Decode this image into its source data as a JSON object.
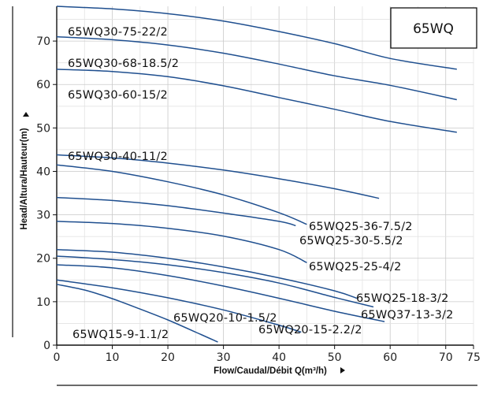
{
  "chart_data": {
    "type": "line",
    "title": "65WQ",
    "xlabel": "Flow/Caudal/Débit Q(m³/h)",
    "ylabel": "Head/Altura/Hauteur(m)",
    "xlim": [
      0,
      75
    ],
    "ylim": [
      0,
      78
    ],
    "x_ticks": [
      0,
      10,
      20,
      30,
      40,
      50,
      60,
      70,
      75
    ],
    "y_ticks": [
      0,
      10,
      20,
      30,
      40,
      50,
      60,
      70
    ],
    "grid": true,
    "series": [
      {
        "name": "65WQ30-75-22/2",
        "x": [
          0,
          10,
          20,
          30,
          40,
          50,
          60,
          72
        ],
        "y": [
          78,
          77.4,
          76.3,
          74.6,
          72.2,
          69.4,
          66.0,
          63.5
        ]
      },
      {
        "name": "65WQ30-68-18.5/2",
        "x": [
          0,
          10,
          20,
          30,
          40,
          50,
          60,
          72
        ],
        "y": [
          71,
          70.3,
          69.1,
          67.2,
          64.7,
          62.0,
          59.8,
          56.5
        ]
      },
      {
        "name": "65WQ30-60-15/2",
        "x": [
          0,
          10,
          20,
          30,
          40,
          50,
          60,
          72
        ],
        "y": [
          63.5,
          63.0,
          61.8,
          59.7,
          57.0,
          54.3,
          51.5,
          49.0
        ]
      },
      {
        "name": "65WQ30-40-11/2",
        "x": [
          0,
          10,
          20,
          30,
          40,
          50,
          58
        ],
        "y": [
          43.8,
          43.1,
          41.9,
          40.3,
          38.3,
          36.0,
          33.8
        ]
      },
      {
        "name": "65WQ25-36-7.5/2",
        "x": [
          0,
          10,
          20,
          30,
          40,
          45
        ],
        "y": [
          41.5,
          40.0,
          37.6,
          34.6,
          30.5,
          27.8
        ]
      },
      {
        "name": "65WQ25-30-5.5/2",
        "x": [
          0,
          10,
          20,
          30,
          40,
          43
        ],
        "y": [
          34,
          33.3,
          32.1,
          30.4,
          28.5,
          27.5
        ]
      },
      {
        "name": "65WQ25-25-4/2",
        "x": [
          0,
          10,
          20,
          30,
          40,
          45
        ],
        "y": [
          28.5,
          28.0,
          26.9,
          25.1,
          22.0,
          19.0
        ]
      },
      {
        "name": "65WQ25-18-3/2",
        "x": [
          0,
          10,
          20,
          30,
          40,
          50,
          54
        ],
        "y": [
          22,
          21.4,
          20.0,
          18.0,
          15.5,
          12.5,
          10.8
        ]
      },
      {
        "name": "65WQ37-13-3/2",
        "x": [
          0,
          10,
          20,
          30,
          40,
          50,
          57
        ],
        "y": [
          20.5,
          19.7,
          18.5,
          16.7,
          14.3,
          11.0,
          8.8
        ]
      },
      {
        "name": "65WQ20-15-2.2/2",
        "x": [
          0,
          10,
          20,
          30,
          40,
          50,
          59
        ],
        "y": [
          18.5,
          17.8,
          16.0,
          13.6,
          10.8,
          7.8,
          5.4
        ]
      },
      {
        "name": "65WQ20-10-1.5/2",
        "x": [
          0,
          10,
          20,
          30,
          40,
          44
        ],
        "y": [
          15,
          13.2,
          10.9,
          8.1,
          4.6,
          3.0
        ]
      },
      {
        "name": "65WQ15-9-1.1/2",
        "x": [
          0,
          5,
          10,
          15,
          20,
          25,
          29
        ],
        "y": [
          14,
          12.7,
          10.7,
          8.3,
          5.8,
          3.0,
          0.7
        ]
      }
    ]
  }
}
